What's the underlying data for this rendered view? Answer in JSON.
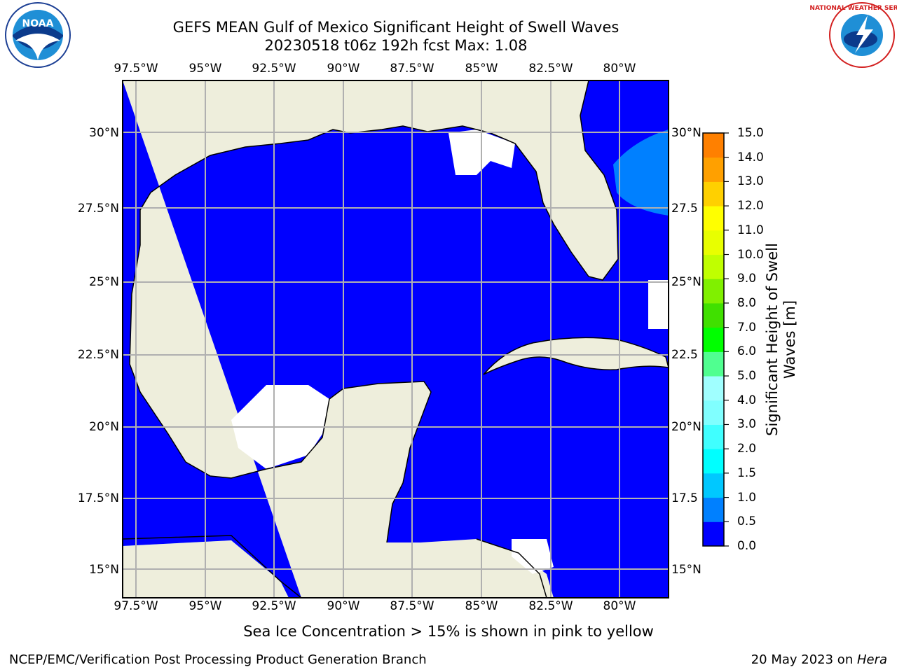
{
  "title_line1": "GEFS MEAN Gulf of Mexico Significant Height of Swell Waves",
  "title_line2": "20230518 t06z 192h fcst   Max: 1.08",
  "lon_labels": [
    "97.5°W",
    "95°W",
    "92.5°W",
    "90°W",
    "87.5°W",
    "85°W",
    "82.5°W",
    "80°W"
  ],
  "lat_labels": [
    "30°N",
    "27.5°N",
    "25°N",
    "22.5°N",
    "20°N",
    "17.5°N",
    "15°N"
  ],
  "lat_labels_right": [
    "30°N",
    "27.5",
    "25°N",
    "22.5",
    "20°N",
    "17.5",
    "15°N"
  ],
  "colorbar": {
    "label": "Significant Height of Swell Waves [m]",
    "label_line1": "Significant Height of Swell",
    "label_line2": "Waves [m]",
    "ticks": [
      "0.0",
      "0.5",
      "1.0",
      "1.5",
      "2.0",
      "3.0",
      "4.0",
      "5.0",
      "6.0",
      "7.0",
      "8.0",
      "9.0",
      "10.0",
      "11.0",
      "12.0",
      "13.0",
      "14.0",
      "15.0"
    ],
    "colors": [
      "#0000ff",
      "#0080ff",
      "#00c8ff",
      "#00ffff",
      "#40ffff",
      "#80ffff",
      "#a0ffff",
      "#50ff90",
      "#00ff00",
      "#40e000",
      "#80f000",
      "#c0ff00",
      "#e8ff00",
      "#ffff00",
      "#ffd000",
      "#ffa000",
      "#ff8000",
      "#ff5000",
      "#ff2000",
      "#ff0000"
    ]
  },
  "colors": {
    "land": "#eeeedc",
    "ocean": "#0000ff",
    "swell_light": "#0080ff",
    "grid": "#b0b0b0"
  },
  "subtitle": "Sea Ice Concentration > 15% is shown in pink to yellow",
  "footer_left": "NCEP/EMC/Verification Post Processing Product Generation Branch",
  "footer_right_date": "20 May 2023 on ",
  "footer_right_host": "Hera",
  "logos": {
    "noaa": "NOAA",
    "nws": "NATIONAL WEATHER SERVICE"
  }
}
